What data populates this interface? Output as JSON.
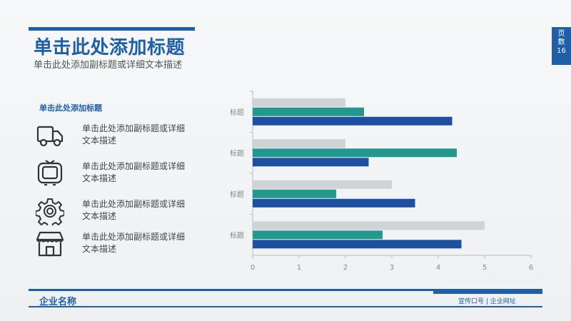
{
  "slide": {
    "title": "单击此处添加标题",
    "subtitle": "单击此处添加副标题或详细文本描述",
    "page_label_1": "页",
    "page_label_2": "数",
    "page_number": "16"
  },
  "features": {
    "heading": "单击此处添加标题",
    "items": [
      {
        "icon": "truck-icon",
        "text": "单击此处添加副标题或详细文本描述"
      },
      {
        "icon": "tv-icon",
        "text": "单击此处添加副标题或详细文本描述"
      },
      {
        "icon": "gear-icon",
        "text": "单击此处添加副标题或详细文本描述"
      },
      {
        "icon": "store-icon",
        "text": "单击此处添加副标题或详细文本描述"
      }
    ]
  },
  "footer": {
    "company": "企业名称",
    "slogan": "宣传口号 | 企业网址"
  },
  "colors": {
    "accent": "#1e5fa8",
    "series_gray": "#cfd3d6",
    "series_teal": "#23998e",
    "series_blue": "#1f4fa0"
  },
  "chart_data": {
    "type": "bar",
    "orientation": "horizontal",
    "categories": [
      "标题",
      "标题",
      "标题",
      "标题"
    ],
    "series": [
      {
        "values": [
          2.0,
          2.0,
          3.0,
          5.0
        ],
        "color": "#cfd3d6"
      },
      {
        "values": [
          2.4,
          4.4,
          1.8,
          2.8
        ],
        "color": "#23998e"
      },
      {
        "values": [
          4.3,
          2.5,
          3.5,
          4.5
        ],
        "color": "#1f4fa0"
      }
    ],
    "xlim": [
      0,
      6
    ],
    "ticks": [
      "0",
      "1",
      "2",
      "3",
      "4",
      "5",
      "6"
    ],
    "grid": false
  }
}
